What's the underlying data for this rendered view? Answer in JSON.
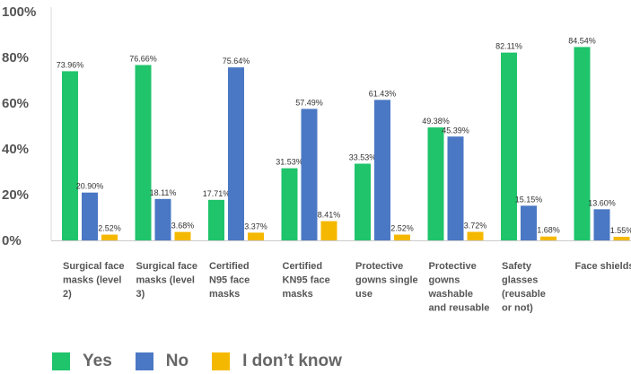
{
  "chart_data": {
    "type": "bar",
    "title": "",
    "xlabel": "",
    "ylabel": "",
    "ylim": [
      0,
      100
    ],
    "y_ticks": [
      "0%",
      "20%",
      "40%",
      "60%",
      "80%",
      "100%"
    ],
    "grid": false,
    "legend_position": "bottom",
    "categories": [
      [
        "Surgical face",
        "masks (level",
        "2)"
      ],
      [
        "Surgical face",
        "masks (level",
        "3)"
      ],
      [
        "Certified",
        "N95 face",
        "masks"
      ],
      [
        "Certified",
        "KN95 face",
        "masks"
      ],
      [
        "Protective",
        "gowns single",
        "use"
      ],
      [
        "Protective",
        "gowns",
        "washable",
        "and reusable"
      ],
      [
        "Safety",
        "glasses",
        "(reusable",
        "or not)"
      ],
      [
        "Face shields"
      ]
    ],
    "series": [
      {
        "name": "Yes",
        "color": "#1fc46b",
        "values": [
          73.96,
          76.66,
          17.71,
          31.53,
          33.53,
          49.38,
          82.11,
          84.54
        ],
        "labels": [
          "73.96%",
          "76.66%",
          "17.71%",
          "31.53%",
          "33.53%",
          "49.38%",
          "82.11%",
          "84.54%"
        ]
      },
      {
        "name": "No",
        "color": "#4a78c4",
        "values": [
          20.9,
          18.11,
          75.64,
          57.49,
          61.43,
          45.39,
          15.15,
          13.6
        ],
        "labels": [
          "20.90%",
          "18.11%",
          "75.64%",
          "57.49%",
          "61.43%",
          "45.39%",
          "15.15%",
          "13.60%"
        ]
      },
      {
        "name": "I don’t know",
        "color": "#f5b800",
        "values": [
          2.52,
          3.68,
          3.37,
          8.41,
          2.52,
          3.72,
          1.68,
          1.55
        ],
        "labels": [
          "2.52%",
          "3.68%",
          "3.37%",
          "8.41%",
          "2.52%",
          "3.72%",
          "1.68%",
          "1.55%"
        ]
      }
    ]
  }
}
